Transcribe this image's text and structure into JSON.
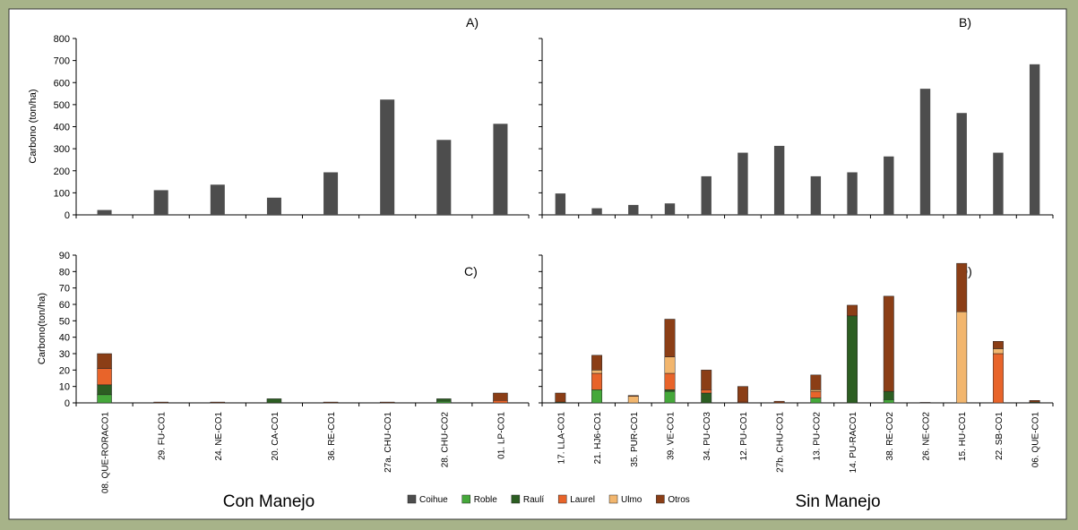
{
  "chart_data": [
    {
      "type": "bar",
      "title": "A)",
      "ylabel": "Carbono (ton/ha)",
      "series": [
        {
          "name": "Coihue",
          "color": "#4d4d4d",
          "values": [
            22,
            112,
            137,
            78,
            193,
            523,
            340,
            413
          ]
        }
      ],
      "ylim": [
        0,
        800
      ],
      "yticks": [
        0,
        100,
        200,
        300,
        400,
        500,
        600,
        700,
        800
      ]
    },
    {
      "type": "bar",
      "title": "B)",
      "color": "#4d4d4d",
      "values": [
        97,
        30,
        45,
        52,
        175,
        282,
        313,
        175,
        193,
        265,
        572,
        462,
        282,
        683
      ],
      "ylim": [
        0,
        800
      ],
      "yticks": [
        0,
        100,
        200,
        300,
        400,
        500,
        600,
        700,
        800
      ]
    },
    {
      "type": "stacked_bar",
      "title": "C)",
      "ylabel": "Carbono(ton/ha)",
      "xlabel": "Con Manejo",
      "categories": [
        "08. QUE-RORACO1",
        "29. FU-CO1",
        "24. NE-CO1",
        "20. CA-CO1",
        "36. RE-CO1",
        "27a. CHU-CO1",
        "28. CHU-CO2",
        "01. LP-CO1"
      ],
      "series": [
        {
          "name": "Roble",
          "color": "#45a83a",
          "values": [
            5,
            0,
            0,
            0,
            0,
            0,
            1,
            0
          ]
        },
        {
          "name": "Raulí",
          "color": "#2c5e22",
          "values": [
            6,
            0,
            0,
            2.5,
            0,
            0,
            1.5,
            0
          ]
        },
        {
          "name": "Laurel",
          "color": "#e8642a",
          "values": [
            10,
            0,
            0,
            0,
            0,
            0,
            0,
            1.5
          ]
        },
        {
          "name": "Ulmo",
          "color": "#f2b66e",
          "values": [
            0,
            0,
            0,
            0,
            0,
            0,
            0,
            0
          ]
        },
        {
          "name": "Otros",
          "color": "#8b3e16",
          "values": [
            9,
            0.5,
            0.5,
            0,
            0.5,
            0.5,
            0,
            4.5
          ]
        }
      ],
      "ylim": [
        0,
        90
      ],
      "yticks": [
        0,
        10,
        20,
        30,
        40,
        50,
        60,
        70,
        80,
        90
      ]
    },
    {
      "type": "stacked_bar",
      "title": "D)",
      "xlabel": "Sin Manejo",
      "categories": [
        "17. LLA-CO1",
        "21. HJ6-CO1",
        "35. PUR-CO1",
        "39. VE-CO1",
        "34. PU-CO3",
        "12. PU-CO1",
        "27b. CHU-CO1",
        "13. PU-CO2",
        "14. PU-RACO1",
        "38. RE-CO2",
        "26. NE-CO2",
        "15. HU-CO1",
        "22. SB-CO1",
        "06. QUE-CO1"
      ],
      "series": [
        {
          "color": "#45a83a",
          "values": [
            0,
            8,
            0,
            7,
            0,
            0,
            0,
            3,
            0,
            2,
            0,
            0,
            0,
            0
          ]
        },
        {
          "color": "#2c5e22",
          "values": [
            0.5,
            0,
            0,
            1,
            6,
            0,
            0,
            0,
            53,
            5,
            0,
            0,
            0,
            0.5
          ]
        },
        {
          "color": "#e8642a",
          "values": [
            0,
            10,
            0,
            10,
            2,
            0.5,
            0,
            4,
            0,
            0,
            0,
            0,
            30,
            0
          ]
        },
        {
          "color": "#f2b66e",
          "values": [
            0,
            2,
            4,
            10,
            0,
            0,
            0,
            1,
            0,
            0,
            0,
            55.5,
            3,
            0
          ]
        },
        {
          "color": "#8b3e16",
          "values": [
            5.5,
            9,
            0.5,
            23,
            12,
            9.5,
            1,
            9,
            6.5,
            58,
            0.3,
            29.5,
            4.5,
            1
          ]
        }
      ],
      "ylim": [
        0,
        90
      ],
      "yticks": [
        0,
        10,
        20,
        30,
        40,
        50,
        60,
        70,
        80,
        90
      ]
    }
  ]
}
